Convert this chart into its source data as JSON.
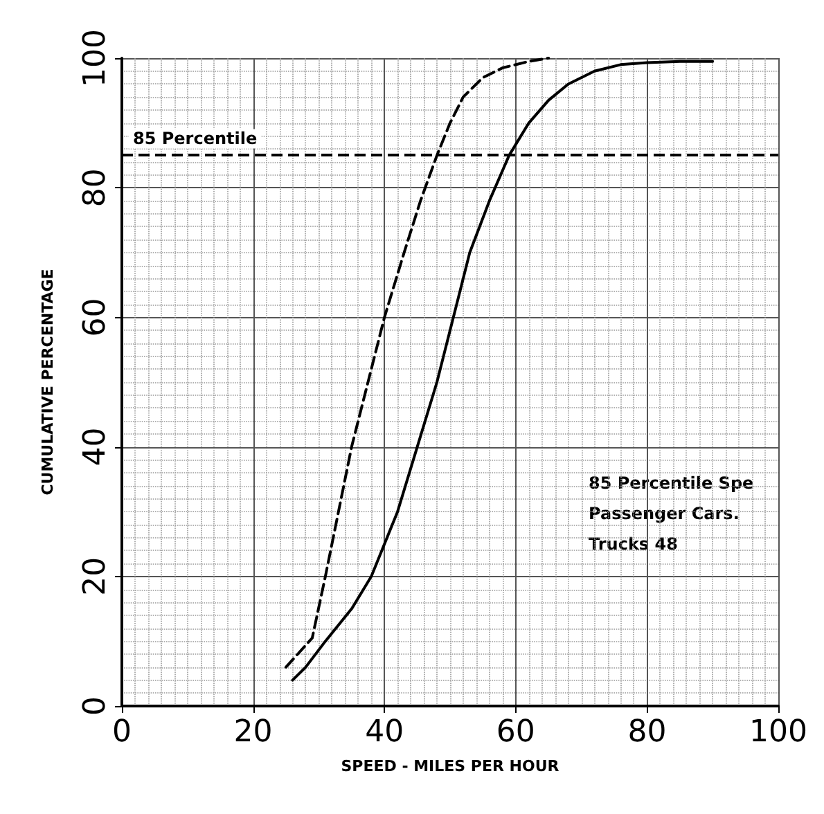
{
  "chart_data": {
    "type": "line",
    "xlabel": "SPEED - MILES PER HOUR",
    "ylabel": "CUMULATIVE PERCENTAGE",
    "xlim": [
      0,
      100
    ],
    "xticks": [
      0,
      20,
      40,
      60,
      80,
      100
    ],
    "ylim": [
      0,
      100
    ],
    "yticks": [
      0,
      20,
      40,
      60,
      80,
      100
    ],
    "grid": true,
    "marker": "none",
    "series": [
      {
        "color": "#000000",
        "line_style": "dashed",
        "x": [
          25,
          29,
          31,
          33,
          35,
          37.5,
          40,
          43,
          45.5,
          48,
          50,
          52,
          55,
          58,
          62,
          65
        ],
        "values": [
          6,
          10.5,
          20,
          30,
          40,
          50,
          60,
          70,
          78,
          85,
          90,
          94,
          97,
          98.5,
          99.5,
          100
        ]
      },
      {
        "color": "#000000",
        "line_style": "solid",
        "x": [
          26,
          28,
          31,
          35,
          38,
          42,
          45,
          48,
          50.5,
          53,
          56,
          59,
          62,
          65,
          68,
          72,
          76,
          80,
          85,
          90
        ],
        "values": [
          4,
          6,
          10,
          15,
          20,
          30,
          40,
          50,
          60,
          70,
          78,
          85,
          90,
          93.5,
          96,
          98,
          99,
          99.3,
          99.5,
          99.5
        ]
      }
    ],
    "ref_lines": [
      {
        "axis": "y",
        "value": 85,
        "label": "85 Percentile",
        "line_style": "dashed"
      }
    ],
    "annotations": [
      "85 Percentile Spe",
      "Passenger Cars.",
      "Trucks 48"
    ]
  }
}
